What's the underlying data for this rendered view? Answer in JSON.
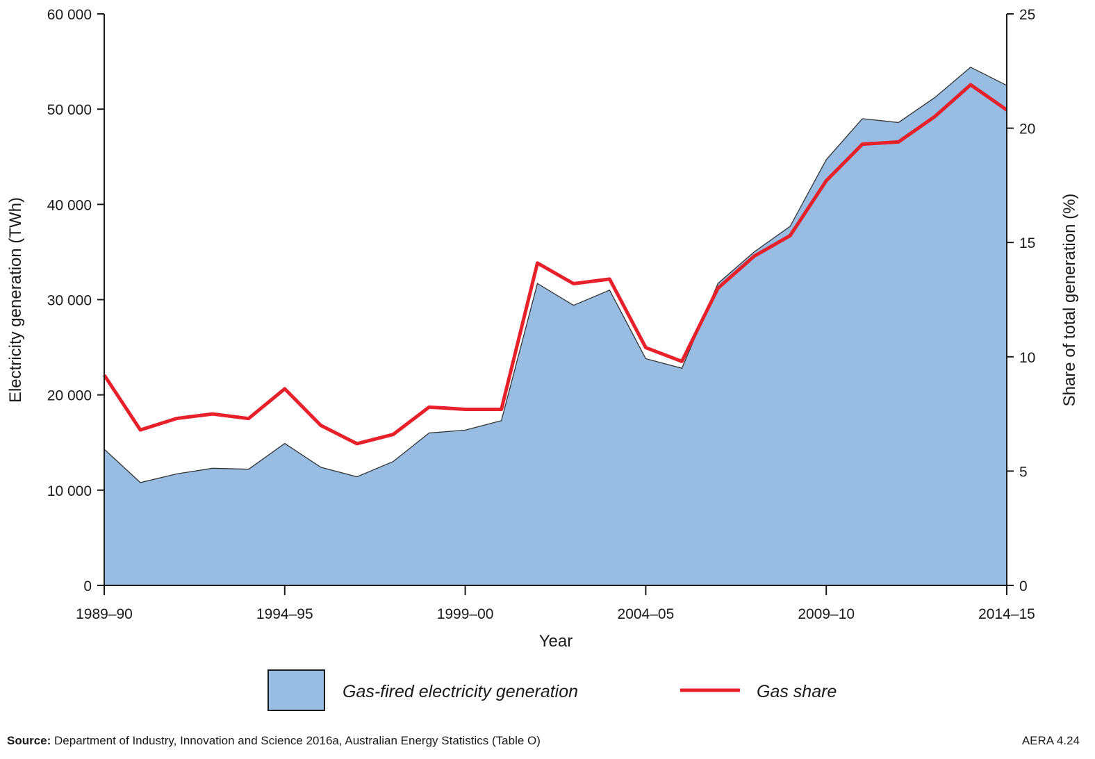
{
  "chart_data": {
    "type": "area",
    "xlabel": "Year",
    "ylabel": "Electricity generation (TWh)",
    "y2label": "Share of total generation (%)",
    "ylim": [
      0,
      60000
    ],
    "y2lim": [
      0,
      25
    ],
    "yticks": [
      0,
      10000,
      20000,
      30000,
      40000,
      50000,
      60000
    ],
    "ytick_labels": [
      "0",
      "10 000",
      "20 000",
      "30 000",
      "40 000",
      "50 000",
      "60 000"
    ],
    "y2ticks": [
      0,
      5,
      10,
      15,
      20,
      25
    ],
    "y2tick_labels": [
      "0",
      "5",
      "10",
      "15",
      "20",
      "25"
    ],
    "x_tick_labels": [
      "1989–90",
      "1994–95",
      "1999–00",
      "2004–05",
      "2009–10",
      "2014–15"
    ],
    "x_tick_indices": [
      0,
      5,
      10,
      15,
      20,
      25
    ],
    "x": [
      "1989–90",
      "1990–91",
      "1991–92",
      "1992–93",
      "1993–94",
      "1994–95",
      "1995–96",
      "1996–97",
      "1997–98",
      "1998–99",
      "1999–00",
      "2000–01",
      "2001–02",
      "2002–03",
      "2003–04",
      "2004–05",
      "2005–06",
      "2006–07",
      "2007–08",
      "2008–09",
      "2009–10",
      "2010–11",
      "2011–12",
      "2012–13",
      "2013–14",
      "2014–15"
    ],
    "series": [
      {
        "name": "Gas-fired electricity generation",
        "type": "area",
        "axis": "left",
        "color": "#99bce3",
        "values": [
          14300,
          10800,
          11700,
          12300,
          12200,
          14900,
          12400,
          11400,
          13000,
          16000,
          16300,
          17300,
          31700,
          29400,
          31000,
          23800,
          22800,
          31700,
          35000,
          37700,
          44700,
          49000,
          48600,
          51200,
          54400,
          52500
        ]
      },
      {
        "name": "Gas share",
        "type": "line",
        "axis": "right",
        "color": "#e8202a",
        "values": [
          9.2,
          6.8,
          7.3,
          7.5,
          7.3,
          8.6,
          7.0,
          6.2,
          6.6,
          7.8,
          7.7,
          7.7,
          14.1,
          13.2,
          13.4,
          10.4,
          9.8,
          13.0,
          14.4,
          15.3,
          17.7,
          19.3,
          19.4,
          20.5,
          21.9,
          20.8
        ]
      }
    ],
    "legend": {
      "position": "bottom"
    }
  },
  "legend": {
    "area_label": "Gas-fired electricity generation",
    "line_label": "Gas share"
  },
  "footer": {
    "source_prefix": "Source:",
    "source_text": " Department of Industry, Innovation and Science 2016a, Australian Energy Statistics (Table O)",
    "figure_id": "AERA 4.24"
  }
}
